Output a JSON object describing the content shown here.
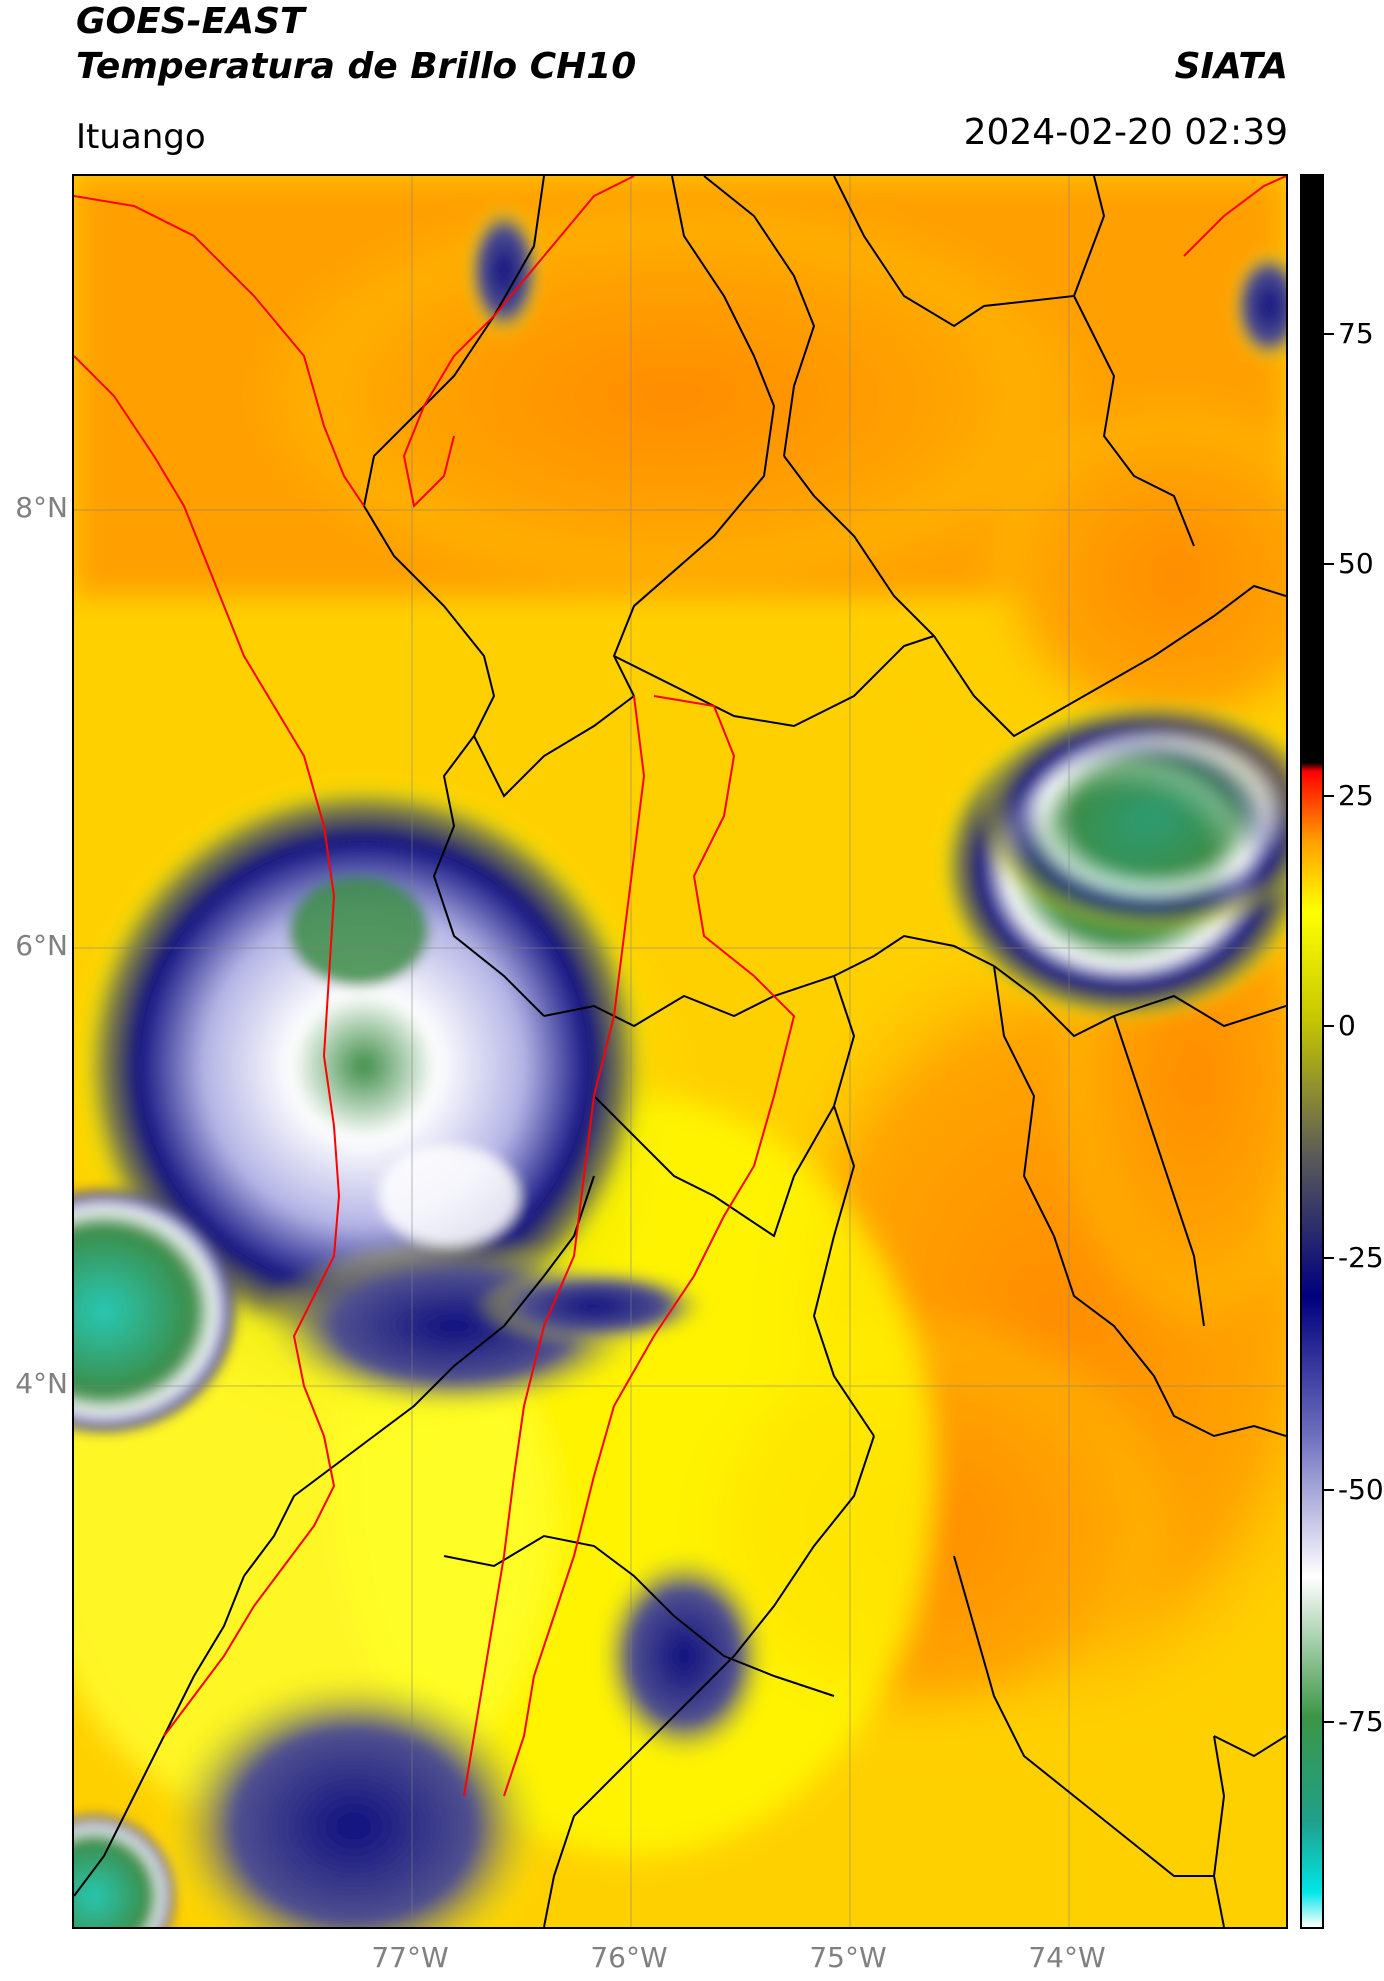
{
  "header": {
    "title_line1": "GOES-EAST",
    "title_line2": "Temperatura de Brillo CH10",
    "brand": "SIATA",
    "region": "Ituango",
    "datetime": "2024-02-20 02:39"
  },
  "map": {
    "lat_labels": [
      "8°N",
      "6°N",
      "4°N"
    ],
    "lon_labels": [
      "77°W",
      "76°W",
      "75°W",
      "74°W"
    ],
    "colors": {
      "orange": "#ff8c00",
      "yellow": "#ffff00",
      "olive": "#8c8c3c",
      "navy": "#101080",
      "lavender": "#b4b4e6",
      "white": "#ffffff",
      "green": "#3c8c46",
      "teal": "#28b4a0",
      "border_black": "#000000",
      "border_red": "#ff0000"
    }
  },
  "colorbar": {
    "tick_labels": [
      "75",
      "50",
      "25",
      "0",
      "-25",
      "-50",
      "-75"
    ],
    "range": [
      -90,
      90
    ],
    "stops": [
      "#ffffff",
      "#00e6e6",
      "#20a08c",
      "#3c9646",
      "#ffffff",
      "#7070c0",
      "#000080",
      "#5a5a5a",
      "#c8c800",
      "#ffff00",
      "#ffa000",
      "#ff0000",
      "#000000"
    ]
  }
}
